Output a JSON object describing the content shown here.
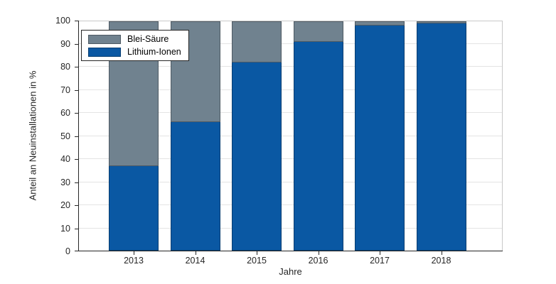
{
  "chart_data": {
    "type": "bar",
    "stacked": true,
    "categories": [
      "2013",
      "2014",
      "2015",
      "2016",
      "2017",
      "2018"
    ],
    "series": [
      {
        "name": "Blei-Säure",
        "color": "#70828F",
        "values": [
          63,
          44,
          18,
          9,
          2,
          1
        ]
      },
      {
        "name": "Lithium-Ionen",
        "color": "#0A58A3",
        "values": [
          37,
          56,
          82,
          91,
          98,
          99
        ]
      }
    ],
    "xlabel": "Jahre",
    "ylabel": "Anteil an Neuinstallationen in %",
    "ylim": [
      0,
      100
    ],
    "yticks": [
      0,
      10,
      20,
      30,
      40,
      50,
      60,
      70,
      80,
      90,
      100
    ],
    "grid": "horizontal-y",
    "legend": {
      "position": "top-left-inside",
      "entries": [
        "Blei-Säure",
        "Lithium-Ionen"
      ]
    },
    "background": "#ffffff"
  }
}
